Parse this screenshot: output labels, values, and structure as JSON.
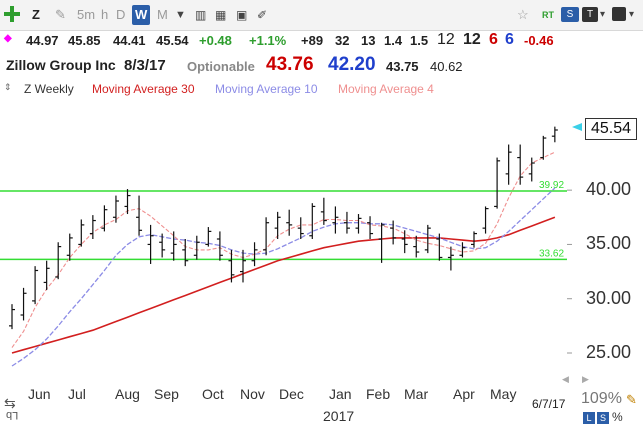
{
  "toolbar": {
    "symbol": "Z",
    "intervals": [
      "5m",
      "h",
      "D",
      "W",
      "M"
    ],
    "selected_interval": "W",
    "rt_label": "RT"
  },
  "quote": {
    "open": "44.97",
    "high": "45.85",
    "low": "44.41",
    "close": "45.54",
    "change": "+0.48",
    "change_pct": "+1.1%",
    "stat1": "+89",
    "stat2": "32",
    "stat3": "13",
    "stat4": "1.4",
    "stat5": "1.5",
    "stat6": "12",
    "stat7": "12",
    "stat8": "6",
    "stat9": "6",
    "stat10": "-0.46"
  },
  "title": {
    "company": "Zillow Group Inc",
    "date": "8/3/17",
    "optionable": "Optionable",
    "price_red": "43.76",
    "price_blue": "42.20",
    "price3": "43.75",
    "price4": "40.62"
  },
  "legend": {
    "main": "Z Weekly",
    "ma30": "Moving Average 30",
    "ma10": "Moving Average 10",
    "ma4": "Moving Average 4"
  },
  "colors": {
    "green": "#2e9e2e",
    "red": "#cc0000",
    "blue": "#1f3fcc",
    "ma30": "#d21f1f",
    "ma10": "#8c8ce6",
    "ma4": "#ef8f8f",
    "hline": "#33dd33"
  },
  "chart_data": {
    "type": "line",
    "title": "",
    "ylim": [
      23.5,
      47.5
    ],
    "y_ticks": [
      "45.54",
      "40.00",
      "35.00",
      "30.00",
      "25.00"
    ],
    "x_ticks": [
      "Jun",
      "Jul",
      "Aug",
      "Sep",
      "Oct",
      "Nov",
      "Dec",
      "Jan",
      "Feb",
      "Mar",
      "Apr",
      "May"
    ],
    "year_label": "2017",
    "last_price": 45.54,
    "horizontal_lines": [
      {
        "value": 39.92,
        "label": "39.92"
      },
      {
        "value": 33.62,
        "label": "33.62"
      }
    ],
    "bars": [
      [
        27.5,
        29.5,
        27.2,
        29.0
      ],
      [
        28.5,
        31.0,
        28.0,
        30.5
      ],
      [
        29.8,
        33.0,
        29.5,
        32.6
      ],
      [
        31.5,
        33.5,
        30.8,
        32.8
      ],
      [
        32.0,
        35.2,
        31.8,
        34.8
      ],
      [
        34.0,
        36.0,
        33.5,
        35.6
      ],
      [
        35.0,
        37.3,
        34.8,
        36.8
      ],
      [
        36.0,
        37.7,
        35.5,
        37.2
      ],
      [
        36.5,
        38.6,
        36.2,
        38.2
      ],
      [
        37.5,
        39.5,
        37.0,
        39.0
      ],
      [
        38.5,
        40.1,
        37.8,
        39.5
      ],
      [
        37.5,
        39.5,
        35.8,
        36.3
      ],
      [
        35.0,
        36.8,
        33.2,
        35.8
      ],
      [
        35.2,
        36.0,
        33.8,
        34.5
      ],
      [
        34.2,
        36.2,
        33.5,
        35.0
      ],
      [
        34.5,
        35.5,
        33.0,
        33.5
      ],
      [
        34.0,
        35.8,
        33.6,
        35.2
      ],
      [
        35.0,
        36.6,
        34.8,
        36.2
      ],
      [
        35.5,
        36.2,
        33.5,
        34.0
      ],
      [
        33.5,
        34.5,
        31.5,
        32.2
      ],
      [
        32.5,
        34.5,
        31.5,
        33.5
      ],
      [
        33.5,
        35.2,
        33.0,
        34.5
      ],
      [
        34.5,
        37.5,
        34.0,
        37.0
      ],
      [
        36.5,
        38.0,
        35.5,
        37.5
      ],
      [
        37.0,
        38.2,
        35.8,
        36.8
      ],
      [
        36.5,
        37.5,
        35.5,
        36.0
      ],
      [
        35.8,
        38.8,
        35.5,
        38.5
      ],
      [
        38.0,
        39.3,
        36.8,
        37.2
      ],
      [
        37.0,
        38.5,
        36.0,
        37.5
      ],
      [
        37.0,
        38.0,
        36.0,
        36.5
      ],
      [
        36.5,
        37.8,
        36.0,
        37.4
      ],
      [
        37.0,
        37.6,
        35.5,
        36.0
      ],
      [
        35.5,
        37.0,
        33.3,
        36.8
      ],
      [
        36.5,
        37.2,
        35.0,
        35.6
      ],
      [
        35.5,
        36.3,
        34.2,
        35.0
      ],
      [
        34.8,
        35.8,
        33.8,
        34.3
      ],
      [
        34.5,
        36.8,
        34.2,
        36.5
      ],
      [
        35.5,
        36.0,
        33.5,
        33.8
      ],
      [
        33.8,
        34.8,
        32.6,
        34.0
      ],
      [
        34.0,
        35.2,
        33.8,
        34.7
      ],
      [
        35.0,
        36.2,
        34.7,
        36.0
      ],
      [
        36.5,
        38.5,
        36.0,
        38.3
      ],
      [
        38.5,
        43.0,
        38.3,
        42.7
      ],
      [
        41.5,
        44.2,
        40.5,
        43.5
      ],
      [
        43.0,
        44.2,
        40.5,
        41.2
      ],
      [
        41.5,
        43.0,
        40.8,
        42.5
      ],
      [
        43.0,
        45.0,
        42.8,
        44.8
      ],
      [
        44.97,
        45.85,
        44.41,
        45.54
      ]
    ],
    "ma30": [
      25.0,
      25.3,
      25.6,
      25.9,
      26.2,
      26.5,
      26.8,
      27.1,
      27.5,
      27.9,
      28.3,
      28.7,
      29.1,
      29.5,
      29.9,
      30.3,
      30.7,
      31.1,
      31.5,
      31.9,
      32.3,
      32.7,
      33.1,
      33.5,
      33.8,
      34.1,
      34.4,
      34.7,
      34.9,
      35.1,
      35.3,
      35.4,
      35.5,
      35.6,
      35.6,
      35.6,
      35.6,
      35.6,
      35.5,
      35.4,
      35.3,
      35.4,
      35.6,
      35.9,
      36.3,
      36.7,
      37.1,
      37.5
    ],
    "ma10": [
      23.8,
      24.5,
      25.3,
      26.3,
      27.5,
      28.8,
      30.0,
      31.3,
      32.6,
      34.0,
      35.0,
      35.7,
      35.9,
      35.7,
      35.5,
      35.4,
      35.2,
      35.1,
      34.9,
      34.5,
      34.2,
      34.1,
      34.2,
      34.6,
      35.1,
      35.6,
      36.2,
      36.6,
      36.9,
      37.0,
      37.0,
      36.9,
      36.9,
      36.8,
      36.5,
      36.2,
      35.9,
      35.6,
      35.2,
      34.8,
      34.6,
      34.7,
      35.3,
      36.2,
      37.2,
      38.2,
      39.2,
      40.2
    ],
    "ma4": [
      25.5,
      27.0,
      29.2,
      30.9,
      32.2,
      33.8,
      35.0,
      36.1,
      36.8,
      37.3,
      38.1,
      38.3,
      37.6,
      36.7,
      35.8,
      34.8,
      34.5,
      34.5,
      34.7,
      34.1,
      33.8,
      34.1,
      34.6,
      35.8,
      36.4,
      36.8,
      36.8,
      37.3,
      37.3,
      37.2,
      37.2,
      36.8,
      36.7,
      36.5,
      36.0,
      35.4,
      35.1,
      34.9,
      34.6,
      34.3,
      34.4,
      35.1,
      36.9,
      39.3,
      41.3,
      42.5,
      43.0,
      43.5
    ]
  },
  "status": {
    "date": "6/7/17",
    "zoom": "109%",
    "percent_btn": "%"
  }
}
